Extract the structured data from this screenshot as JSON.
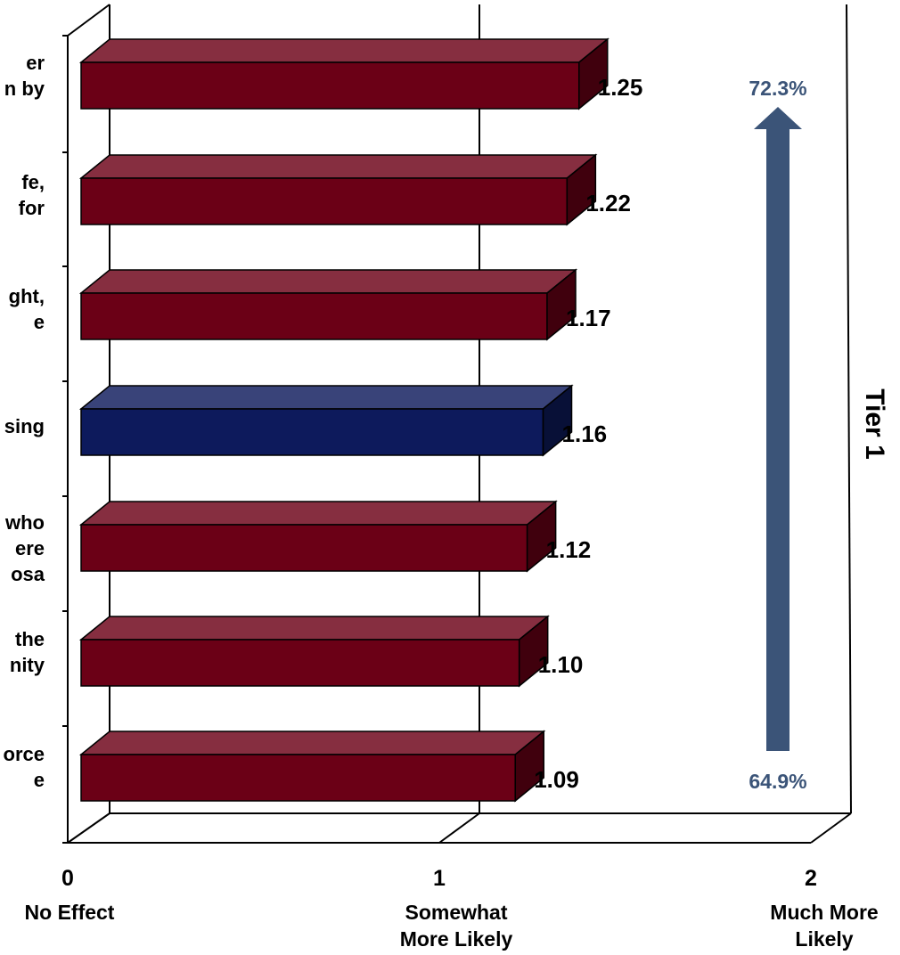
{
  "chart_data": {
    "type": "bar",
    "orientation": "horizontal",
    "style": "3d",
    "categories_partial": [
      "er\nn by",
      "fe,\n for",
      "ght,\ne",
      "sing",
      "who\nere\nosa",
      " the\nnity",
      "orce\ne"
    ],
    "values": [
      1.25,
      1.22,
      1.17,
      1.16,
      1.12,
      1.1,
      1.09
    ],
    "value_labels": [
      "1.25",
      "1.22",
      "1.17",
      "1.16",
      "1.12",
      "1.10",
      "1.09"
    ],
    "highlight_index": 3,
    "colors": {
      "bar": "#6b0016",
      "highlight": "#0d1a5c",
      "arrow": "#3b5478",
      "arrow_text": "#3b5478"
    },
    "xlim": [
      0,
      2
    ],
    "x_ticks": [
      {
        "value": 0,
        "number": "0",
        "caption": [
          "No Effect"
        ]
      },
      {
        "value": 1,
        "number": "1",
        "caption": [
          "Somewhat",
          "More  Likely"
        ]
      },
      {
        "value": 2,
        "number": "2",
        "caption": [
          "Much More",
          "Likely"
        ]
      }
    ],
    "grid_x": [
      1
    ],
    "arrow": {
      "top_label": "72.3%",
      "bottom_label": "64.9%"
    },
    "side_label": "Tier 1"
  }
}
